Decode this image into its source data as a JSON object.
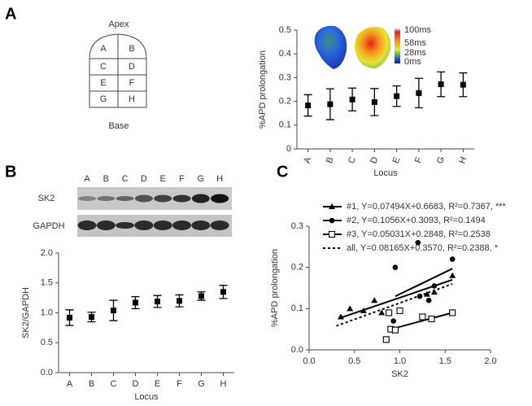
{
  "panels": [
    "A",
    "B",
    "C"
  ],
  "diagram": {
    "top": "Apex",
    "bottom": "Base",
    "cells": [
      "A",
      "B",
      "C",
      "D",
      "E",
      "F",
      "G",
      "H"
    ]
  },
  "heatmap_scale": [
    "100ms",
    "58ms",
    "28ms",
    "0ms"
  ],
  "blot": {
    "lanes": [
      "A",
      "B",
      "C",
      "D",
      "E",
      "F",
      "G",
      "H"
    ],
    "rows": [
      "SK2",
      "GAPDH"
    ]
  },
  "chart_data": [
    {
      "type": "errorbar",
      "ylabel": "%APD prolongation",
      "xlabel": "Locus",
      "categories": [
        "A",
        "B",
        "C",
        "D",
        "E",
        "F",
        "G",
        "H"
      ],
      "values": [
        0.183,
        0.188,
        0.208,
        0.197,
        0.222,
        0.235,
        0.272,
        0.27
      ],
      "errors": [
        0.045,
        0.065,
        0.048,
        0.057,
        0.043,
        0.062,
        0.052,
        0.05
      ],
      "color": "#000000",
      "ylim": [
        0,
        0.5
      ],
      "yticks": [
        0,
        0.1,
        0.2,
        0.3,
        0.4,
        0.5
      ],
      "rotate_labels": true
    },
    {
      "type": "errorbar",
      "ylabel": "SK2/GAPDH",
      "xlabel": "Locus",
      "categories": [
        "A",
        "B",
        "C",
        "D",
        "E",
        "F",
        "G",
        "H"
      ],
      "values": [
        0.92,
        0.93,
        1.04,
        1.17,
        1.19,
        1.2,
        1.28,
        1.35
      ],
      "errors": [
        0.13,
        0.08,
        0.17,
        0.1,
        0.1,
        0.1,
        0.07,
        0.11
      ],
      "color": "#000000",
      "ylim": [
        0,
        2
      ],
      "yticks": [
        {
          "value": 0,
          "label": "0.0"
        },
        0.5,
        {
          "value": 1,
          "label": "1.0"
        },
        1.5,
        {
          "value": 2,
          "label": "2.0"
        }
      ],
      "rotate_labels": false
    },
    {
      "type": "scatter",
      "xlabel": "SK2",
      "ylabel": "%APD prolongation",
      "xlim": [
        0,
        2
      ],
      "xticks": [
        {
          "value": 0,
          "label": "0.0"
        },
        0.5,
        {
          "value": 1,
          "label": "1.0"
        },
        1.5,
        {
          "value": 2,
          "label": "2.0"
        }
      ],
      "ylim": [
        0,
        0.3
      ],
      "yticks": [
        {
          "value": 0,
          "label": "0.0"
        },
        0.1,
        0.2,
        0.3
      ],
      "series": [
        {
          "name": "#1, Y=0.07494X+0.6683, R²=0.7367, ***",
          "marker": "triangle",
          "dash": false,
          "color": "#000000",
          "x": [
            0.35,
            0.45,
            0.6,
            0.72,
            0.8,
            1.3,
            1.38,
            1.58
          ],
          "values": [
            0.08,
            0.1,
            0.095,
            0.12,
            0.09,
            0.135,
            0.14,
            0.18
          ],
          "line_x": [
            0.35,
            1.58
          ],
          "line_y": [
            0.078,
            0.17
          ]
        },
        {
          "name": "#2, Y=0.1056X+0.3093, R²=0.1494",
          "marker": "circle",
          "dash": false,
          "color": "#000000",
          "x": [
            0.88,
            0.93,
            0.95,
            1.2,
            1.22,
            1.32,
            1.38,
            1.58
          ],
          "values": [
            0.09,
            0.07,
            0.2,
            0.26,
            0.13,
            0.12,
            0.155,
            0.22
          ],
          "line_x": [
            0.95,
            1.58
          ],
          "line_y": [
            0.13,
            0.197
          ]
        },
        {
          "name": "#3, Y=0.05031X+0.2848, R²=0.2538",
          "marker": "square",
          "dash": false,
          "color": "#000000",
          "x": [
            0.85,
            0.88,
            0.9,
            0.95,
            1.0,
            1.25,
            1.35,
            1.58
          ],
          "values": [
            0.025,
            0.09,
            0.05,
            0.048,
            0.095,
            0.08,
            0.075,
            0.09
          ],
          "line_x": [
            0.9,
            1.58
          ],
          "line_y": [
            0.05,
            0.09
          ]
        },
        {
          "name": "all, Y=0.08165X+0.3570, R²=0.2388, *",
          "marker": "none",
          "dash": true,
          "color": "#000000",
          "x": [],
          "values": [],
          "line_x": [
            0.3,
            1.58
          ],
          "line_y": [
            0.058,
            0.16
          ]
        }
      ]
    }
  ]
}
